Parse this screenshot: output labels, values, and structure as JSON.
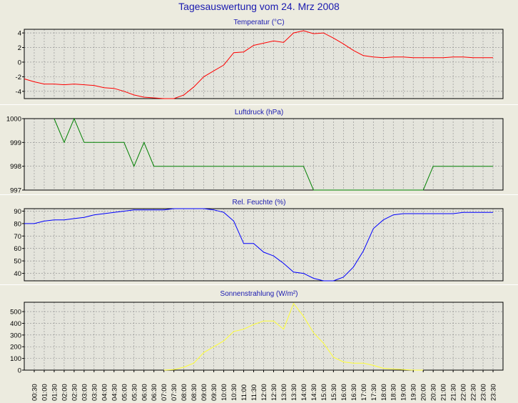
{
  "title": "Tagesauswertung vom 24. Mrz 2008",
  "time_labels": [
    "00:30",
    "01:00",
    "01:30",
    "02:00",
    "02:30",
    "03:00",
    "03:30",
    "04:00",
    "04:30",
    "05:00",
    "05:30",
    "06:00",
    "06:30",
    "07:00",
    "07:30",
    "08:00",
    "08:30",
    "09:00",
    "09:30",
    "10:00",
    "10:30",
    "11:00",
    "11:30",
    "12:00",
    "12:30",
    "13:00",
    "13:30",
    "14:00",
    "14:30",
    "15:00",
    "15:30",
    "16:00",
    "16:30",
    "17:00",
    "17:30",
    "18:00",
    "18:30",
    "19:00",
    "19:30",
    "20:00",
    "20:30",
    "21:00",
    "21:30",
    "22:00",
    "22:30",
    "23:00",
    "23:30"
  ],
  "chart_data": [
    {
      "type": "line",
      "title": "Temperatur (°C)",
      "color": "#ff0000",
      "ylim": [
        -5,
        4.5
      ],
      "yticks": [
        4,
        2,
        0,
        -2,
        -4
      ],
      "x": [
        0,
        0.5,
        1,
        1.5,
        2,
        2.5,
        3,
        3.5,
        4,
        4.5,
        5,
        5.5,
        6,
        6.5,
        7,
        7.5,
        8,
        8.5,
        9,
        9.5,
        10,
        10.5,
        11,
        11.5,
        12,
        12.5,
        13,
        13.5,
        14,
        14.5,
        15,
        15.5,
        16,
        16.5,
        17,
        17.5,
        18,
        18.5,
        19,
        19.5,
        20,
        20.5,
        21,
        21.5,
        22,
        22.5,
        23,
        23.5
      ],
      "y": [
        -2.3,
        -2.7,
        -3.0,
        -3.0,
        -3.1,
        -3.0,
        -3.1,
        -3.2,
        -3.5,
        -3.6,
        -4.0,
        -4.5,
        -4.8,
        -4.9,
        -5.0,
        -5.0,
        -4.5,
        -3.4,
        -2.0,
        -1.2,
        -0.4,
        1.3,
        1.4,
        2.3,
        2.6,
        2.9,
        2.7,
        4.0,
        4.3,
        3.9,
        4.0,
        3.3,
        2.5,
        1.6,
        0.9,
        0.7,
        0.6,
        0.7,
        0.7,
        0.6,
        0.6,
        0.6,
        0.6,
        0.7,
        0.7,
        0.6,
        0.6,
        0.6
      ]
    },
    {
      "type": "line",
      "title": "Luftdruck (hPa)",
      "color": "#008000",
      "ylim": [
        997,
        1000
      ],
      "yticks": [
        1000,
        999,
        998,
        997
      ],
      "x": [
        1.5,
        2,
        2.5,
        3,
        3.5,
        4,
        4.5,
        5,
        5.5,
        6,
        6.5,
        7,
        14,
        14.5,
        20,
        20.5,
        21,
        21.5,
        22,
        22.5,
        23,
        23.5
      ],
      "y": [
        1000,
        999,
        1000,
        999,
        999,
        999,
        999,
        999,
        998,
        999,
        998,
        998,
        998,
        997,
        997,
        998,
        998,
        998,
        998,
        998,
        998,
        998
      ]
    },
    {
      "type": "line",
      "title": "Rel. Feuchte (%)",
      "color": "#0000ff",
      "ylim": [
        34,
        92
      ],
      "yticks": [
        90,
        80,
        70,
        60,
        50,
        40
      ],
      "x": [
        0,
        0.5,
        1,
        1.5,
        2,
        2.5,
        3,
        3.5,
        4,
        4.5,
        5,
        5.5,
        6,
        6.5,
        7,
        7.5,
        8,
        8.5,
        9,
        9.5,
        10,
        10.5,
        11,
        11.5,
        12,
        12.5,
        13,
        13.5,
        14,
        14.5,
        15,
        15.5,
        16,
        16.5,
        17,
        17.5,
        18,
        18.5,
        19,
        19.5,
        20,
        20.5,
        21,
        21.5,
        22,
        22.5,
        23,
        23.5
      ],
      "y": [
        80,
        80,
        82,
        83,
        83,
        84,
        85,
        87,
        88,
        89,
        90,
        91,
        91,
        91,
        91,
        92,
        92,
        92,
        92,
        91,
        89,
        82,
        64,
        64,
        57,
        54,
        48,
        41,
        40,
        36,
        34,
        34,
        37,
        45,
        58,
        76,
        83,
        87,
        88,
        88,
        88,
        88,
        88,
        88,
        89,
        89,
        89,
        89
      ]
    },
    {
      "type": "line",
      "title": "Sonnenstrahlung (W/m²)",
      "color": "#ffff33",
      "ylim": [
        0,
        580
      ],
      "yticks": [
        500,
        400,
        300,
        200,
        100,
        0
      ],
      "x": [
        7,
        7.5,
        8,
        8.5,
        9,
        9.5,
        10,
        10.5,
        11,
        11.5,
        12,
        12.5,
        13,
        13.5,
        14,
        14.5,
        15,
        15.5,
        16,
        16.5,
        17,
        17.5,
        18,
        18.5,
        19,
        19.5,
        20
      ],
      "y": [
        0,
        5,
        25,
        60,
        150,
        200,
        250,
        330,
        350,
        390,
        420,
        420,
        350,
        570,
        460,
        320,
        230,
        110,
        70,
        60,
        60,
        40,
        15,
        10,
        5,
        0,
        0
      ]
    }
  ]
}
